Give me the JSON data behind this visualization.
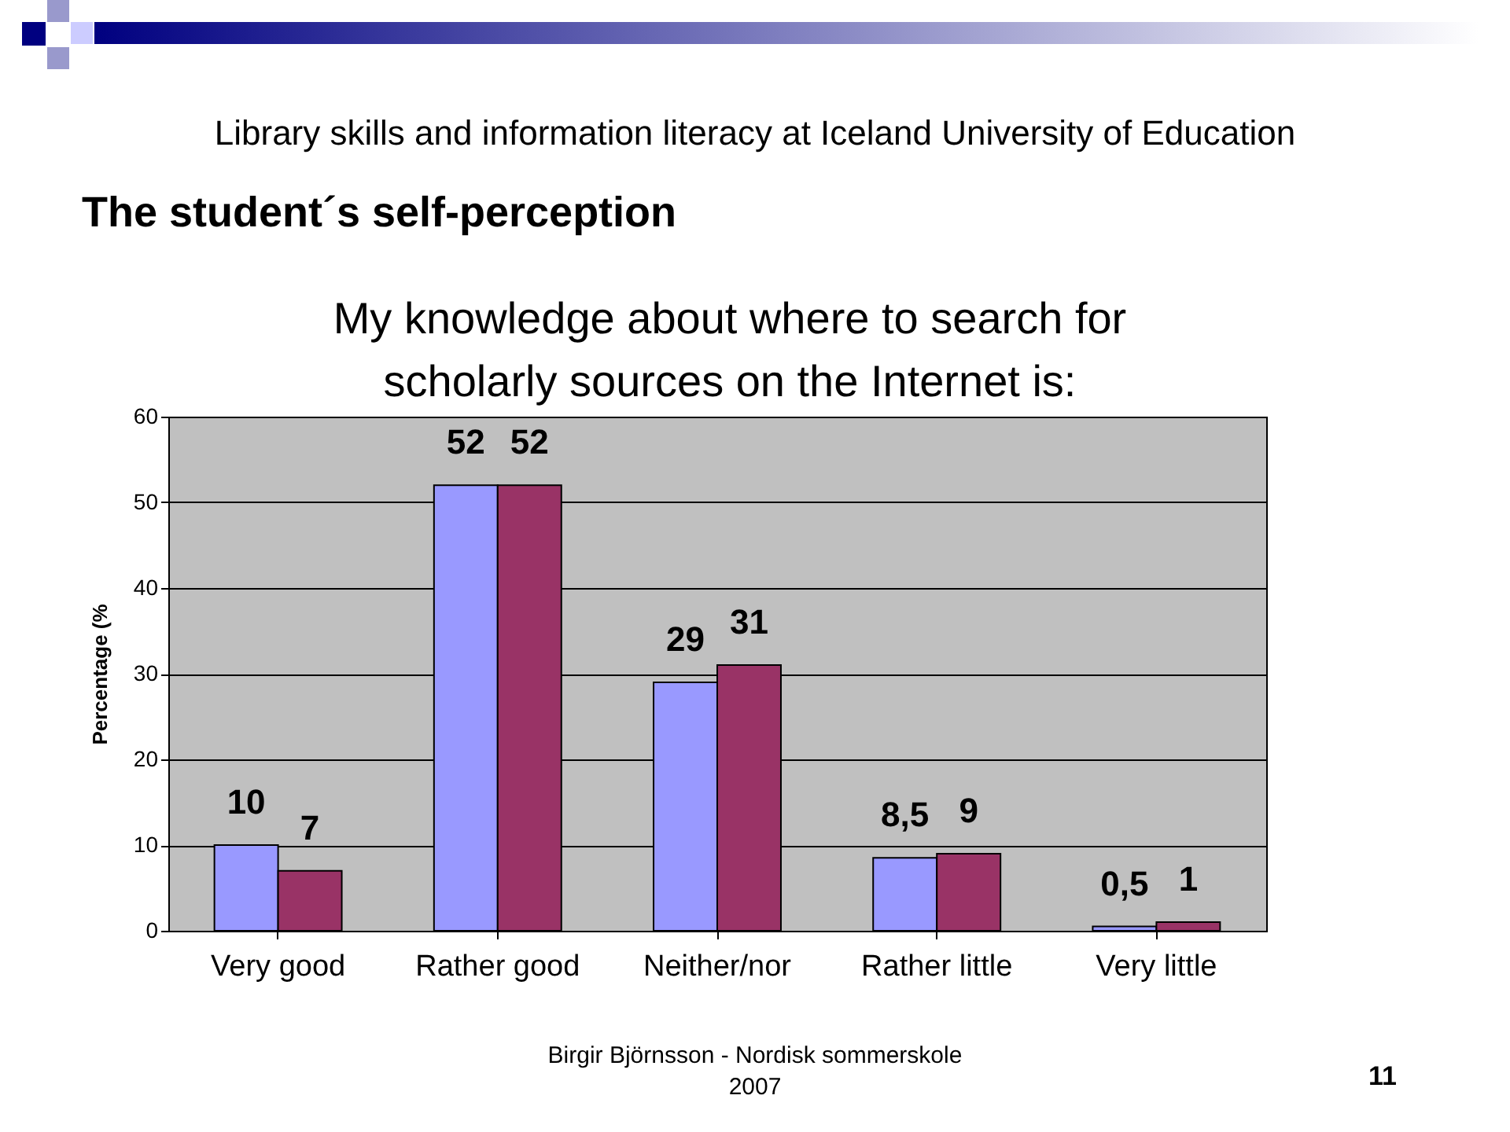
{
  "chart_data": {
    "type": "bar",
    "title": "My knowledge about where to search for scholarly sources on the Internet is:",
    "subtitle": "The student´s self-perception",
    "annotations": [
      "Library skills and information literacy at Iceland University of Education",
      "Birgir Björnsson - Nordisk sommerskole 2007",
      "11"
    ],
    "ylabel": "Percentage (%",
    "categories": [
      "Very good",
      "Rather good",
      "Neither/nor",
      "Rather little",
      "Very little"
    ],
    "series": [
      {
        "color": "#9999ff",
        "values": [
          10,
          52,
          29,
          8.5,
          0.5
        ],
        "value_labels": [
          "10",
          "52",
          "29",
          "8,5",
          "0,5"
        ]
      },
      {
        "color": "#993366",
        "values": [
          7,
          52,
          31,
          9,
          1
        ],
        "value_labels": [
          "7",
          "52",
          "31",
          "9",
          "1"
        ]
      }
    ],
    "ylim": [
      0,
      60
    ],
    "yticks": [
      0,
      10,
      20,
      30,
      40,
      50,
      60
    ],
    "grid": "y",
    "legend": false
  }
}
